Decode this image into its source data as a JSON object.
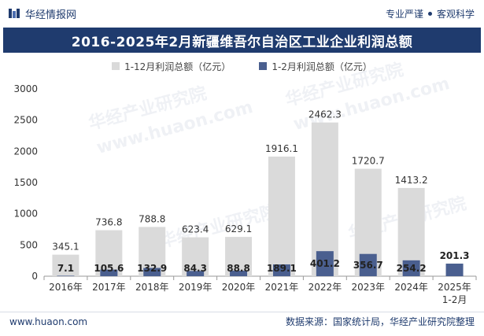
{
  "header": {
    "brand": "华经情报网",
    "tagline_left": "专业严谨",
    "tagline_right": "客观科学"
  },
  "title": "2016-2025年2月新疆维吾尔自治区工业企业利润总额",
  "legend": {
    "series_a": "1-12月利润总额（亿元）",
    "series_b": "1-2月利润总额（亿元）"
  },
  "watermarks": [
    "华经产业研究院",
    "www.huaon.com"
  ],
  "footer": {
    "url": "www.huaon.com",
    "source": "数据来源：国家统计局，华经产业研究院整理"
  },
  "colors": {
    "series_a": "#dadada",
    "series_b": "#4a5f8f",
    "title_bg": "#1f3b6e"
  },
  "chart_data": {
    "type": "bar",
    "title": "2016-2025年2月新疆维吾尔自治区工业企业利润总额",
    "categories": [
      "2016年",
      "2017年",
      "2018年",
      "2019年",
      "2020年",
      "2021年",
      "2022年",
      "2023年",
      "2024年",
      "2025年1-2月"
    ],
    "series": [
      {
        "name": "1-12月利润总额（亿元）",
        "values": [
          345.1,
          736.8,
          788.8,
          623.4,
          629.1,
          1916.1,
          2462.3,
          1720.7,
          1413.2,
          null
        ]
      },
      {
        "name": "1-2月利润总额（亿元）",
        "values": [
          7.1,
          105.6,
          132.9,
          84.3,
          88.8,
          189.1,
          401.2,
          356.7,
          254.2,
          201.3
        ]
      }
    ],
    "yticks": [
      "0",
      "500",
      "1000",
      "1500",
      "2000",
      "2500",
      "3000"
    ],
    "ylim": [
      0,
      3000
    ],
    "grid": false,
    "legend_position": "top"
  }
}
